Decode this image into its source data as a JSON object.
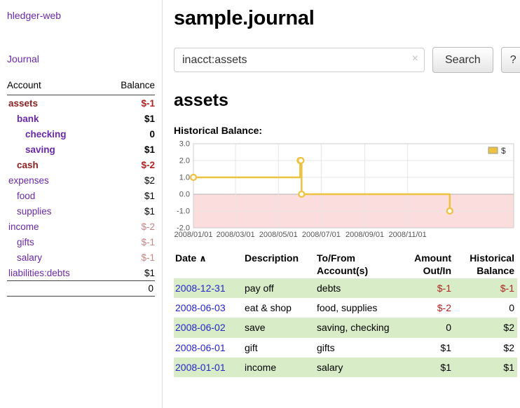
{
  "colors": {
    "link_purple": "#6a28a8",
    "link_visited_maroon": "#8b2323",
    "negative_red": "#b22222",
    "negative_soft_red": "#c88383",
    "date_link_blue": "#2525cc",
    "row_stripe_green": "#d8ecc8",
    "chart_line_gold": "#edc240",
    "chart_negative_region_pink": "#fcdddd"
  },
  "sidebar": {
    "brand": "hledger-web",
    "journal_link": "Journal",
    "accounts_header": {
      "account": "Account",
      "balance": "Balance"
    },
    "accounts": [
      {
        "name": "assets",
        "depth": 1,
        "balance": "$-1",
        "bold": true,
        "visited": true,
        "balance_color": "negative"
      },
      {
        "name": "bank",
        "depth": 2,
        "balance": "$1",
        "bold": true,
        "visited": false,
        "balance_color": "normal"
      },
      {
        "name": "checking",
        "depth": 3,
        "balance": "0",
        "bold": true,
        "visited": false,
        "balance_color": "normal"
      },
      {
        "name": "saving",
        "depth": 3,
        "balance": "$1",
        "bold": true,
        "visited": false,
        "balance_color": "normal"
      },
      {
        "name": "cash",
        "depth": 2,
        "balance": "$-2",
        "bold": true,
        "visited": true,
        "balance_color": "negative"
      },
      {
        "name": "expenses",
        "depth": 1,
        "balance": "$2",
        "bold": false,
        "visited": false,
        "balance_color": "normal"
      },
      {
        "name": "food",
        "depth": 2,
        "balance": "$1",
        "bold": false,
        "visited": false,
        "balance_color": "normal"
      },
      {
        "name": "supplies",
        "depth": 2,
        "balance": "$1",
        "bold": false,
        "visited": false,
        "balance_color": "normal"
      },
      {
        "name": "income",
        "depth": 1,
        "balance": "$-2",
        "bold": false,
        "visited": false,
        "balance_color": "negative-soft"
      },
      {
        "name": "gifts",
        "depth": 2,
        "balance": "$-1",
        "bold": false,
        "visited": false,
        "balance_color": "negative-soft"
      },
      {
        "name": "salary",
        "depth": 2,
        "balance": "$-1",
        "bold": false,
        "visited": false,
        "balance_color": "negative-soft"
      },
      {
        "name": "liabilities:debts",
        "depth": 1,
        "balance": "$1",
        "bold": false,
        "visited": false,
        "balance_color": "normal"
      }
    ],
    "total": "0"
  },
  "main": {
    "title": "sample.journal",
    "search": {
      "value": "inacct:assets",
      "clear_icon": "×",
      "search_button": "Search",
      "help_button": "?"
    },
    "account_heading": "assets",
    "chart_title": "Historical Balance:",
    "transactions": {
      "headers": {
        "date": "Date",
        "sort_icon": "∧",
        "description": "Description",
        "accounts": "To/From Account(s)",
        "amount": "Amount Out/In",
        "balance": "Historical Balance"
      },
      "rows": [
        {
          "date": "2008-12-31",
          "description": "pay off",
          "accounts": "debts",
          "amount": "$-1",
          "amount_negative": true,
          "balance": "$-1",
          "balance_negative": true,
          "striped": true
        },
        {
          "date": "2008-06-03",
          "description": "eat & shop",
          "accounts": "food, supplies",
          "amount": "$-2",
          "amount_negative": true,
          "balance": "0",
          "balance_negative": false,
          "striped": false
        },
        {
          "date": "2008-06-02",
          "description": "save",
          "accounts": "saving, checking",
          "amount": "0",
          "amount_negative": false,
          "balance": "$2",
          "balance_negative": false,
          "striped": true
        },
        {
          "date": "2008-06-01",
          "description": "gift",
          "accounts": "gifts",
          "amount": "$1",
          "amount_negative": false,
          "balance": "$2",
          "balance_negative": false,
          "striped": false
        },
        {
          "date": "2008-01-01",
          "description": "income",
          "accounts": "salary",
          "amount": "$1",
          "amount_negative": false,
          "balance": "$1",
          "balance_negative": false,
          "striped": true
        }
      ]
    }
  },
  "chart_data": {
    "type": "line",
    "subtype": "step",
    "title": "Historical Balance:",
    "legend": {
      "label": "$",
      "position": "top-right"
    },
    "ylim": [
      -2,
      3
    ],
    "yticks": [
      3,
      2,
      1,
      0,
      -1,
      -2
    ],
    "x_axis_days_total": 456,
    "xticks": [
      {
        "label": "2008/01/01",
        "day": 0
      },
      {
        "label": "2008/03/01",
        "day": 60
      },
      {
        "label": "2008/05/01",
        "day": 121
      },
      {
        "label": "2008/07/01",
        "day": 182
      },
      {
        "label": "2008/09/01",
        "day": 244
      },
      {
        "label": "2008/11/01",
        "day": 305
      }
    ],
    "series": [
      {
        "name": "$",
        "color": "#edc240",
        "points": [
          {
            "date": "2008-01-01",
            "day": 0,
            "value": 1
          },
          {
            "date": "2008-06-01",
            "day": 152,
            "value": 2
          },
          {
            "date": "2008-06-02",
            "day": 153,
            "value": 2
          },
          {
            "date": "2008-06-03",
            "day": 154,
            "value": 0
          },
          {
            "date": "2008-12-31",
            "day": 365,
            "value": -1
          }
        ]
      }
    ],
    "negative_region": {
      "from": 0,
      "to": -2,
      "color": "#fcdddd"
    },
    "grid": true
  }
}
